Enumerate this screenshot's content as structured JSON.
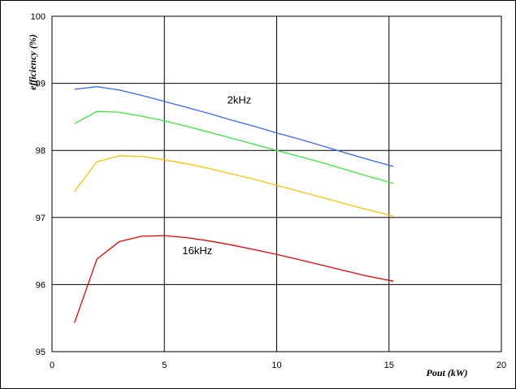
{
  "chart_data": {
    "type": "line",
    "xlabel": "Pout (kW)",
    "ylabel": "efficiency (%)",
    "xlim": [
      0,
      20
    ],
    "ylim": [
      95,
      100
    ],
    "x_ticks": [
      "0",
      "5",
      "10",
      "15",
      "20"
    ],
    "y_ticks": [
      "95",
      "96",
      "97",
      "98",
      "99",
      "100"
    ],
    "grid": true,
    "series": [
      {
        "color": "#3366ff",
        "x": [
          1,
          2,
          3,
          4,
          5,
          6,
          7,
          8,
          9,
          10,
          11,
          12,
          13,
          14,
          15.2
        ],
        "y": [
          98.91,
          98.95,
          98.9,
          98.82,
          98.73,
          98.64,
          98.55,
          98.45,
          98.36,
          98.26,
          98.17,
          98.07,
          97.97,
          97.87,
          97.76
        ]
      },
      {
        "color": "#33ee33",
        "x": [
          1,
          2,
          3,
          4,
          5,
          6,
          7,
          8,
          9,
          10,
          11,
          12,
          13,
          14,
          15.2
        ],
        "y": [
          98.4,
          98.58,
          98.57,
          98.51,
          98.44,
          98.36,
          98.27,
          98.18,
          98.09,
          98.0,
          97.91,
          97.82,
          97.72,
          97.62,
          97.51
        ]
      },
      {
        "color": "#ffc000",
        "x": [
          1,
          2,
          3,
          4,
          5,
          6,
          7,
          8,
          9,
          10,
          11,
          12,
          13,
          14,
          15.2
        ],
        "y": [
          97.39,
          97.83,
          97.92,
          97.91,
          97.86,
          97.8,
          97.73,
          97.65,
          97.57,
          97.48,
          97.39,
          97.3,
          97.21,
          97.12,
          97.02
        ]
      },
      {
        "color": "#ee0000",
        "x": [
          1,
          2,
          3,
          4,
          5,
          6,
          7,
          8,
          9,
          10,
          11,
          12,
          13,
          14,
          15.2
        ],
        "y": [
          95.43,
          96.38,
          96.64,
          96.72,
          96.73,
          96.7,
          96.65,
          96.59,
          96.52,
          96.45,
          96.37,
          96.29,
          96.21,
          96.13,
          96.05
        ]
      }
    ],
    "annotations": [
      {
        "text": "2kHz",
        "x": 7.8,
        "y": 98.7
      },
      {
        "text": "16kHz",
        "x": 5.8,
        "y": 96.45
      }
    ]
  }
}
